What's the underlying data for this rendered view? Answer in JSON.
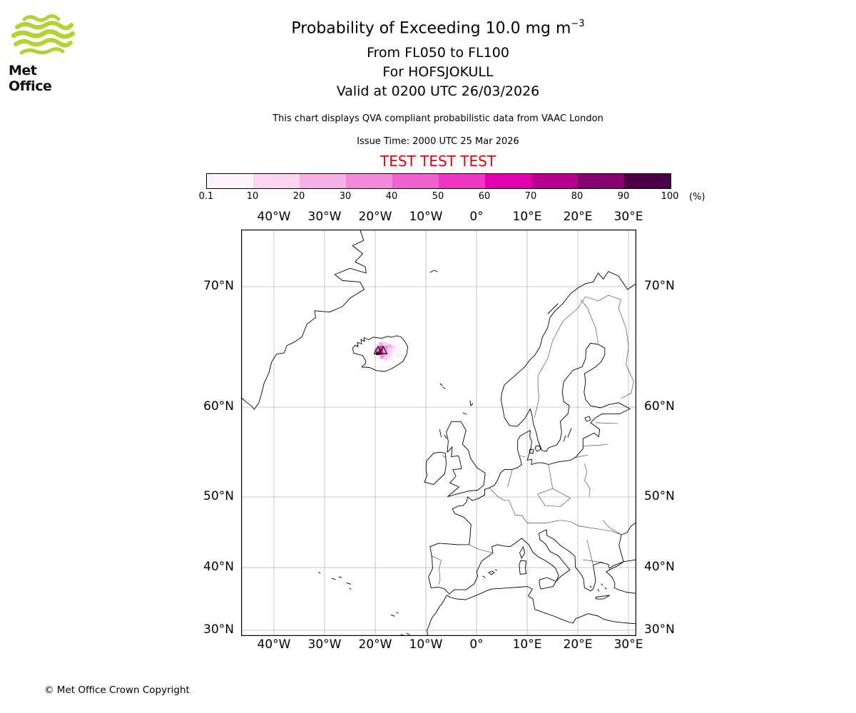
{
  "logo": {
    "brand": "Met Office",
    "wave_color": "#b3d234"
  },
  "header": {
    "title": "Probability of Exceeding 10.0 mg m",
    "title_sup": "−3",
    "line2": "From FL050 to FL100",
    "line3": "For HOFSJOKULL",
    "line4": "Valid at 0200 UTC 26/03/2026",
    "note": "This chart displays QVA compliant probabilistic data from VAAC London",
    "issue": "Issue Time: 2000 UTC 25 Mar 2026",
    "test_banner": "TEST TEST TEST",
    "test_color": "#e8000d"
  },
  "colorbar": {
    "unit": "(%)",
    "ticks": [
      "0.1",
      "10",
      "20",
      "30",
      "40",
      "50",
      "60",
      "70",
      "80",
      "90",
      "100"
    ],
    "colors": [
      "#fdf4fb",
      "#fad4f0",
      "#f7b0e5",
      "#f48ad9",
      "#f161cd",
      "#ee35c1",
      "#e300ae",
      "#b80090",
      "#870070",
      "#4b0048"
    ]
  },
  "map": {
    "lon_labels": [
      "40°W",
      "30°W",
      "20°W",
      "10°W",
      "0°",
      "10°E",
      "20°E",
      "30°E"
    ],
    "lat_labels": [
      "70°N",
      "60°N",
      "50°N",
      "40°N",
      "30°N"
    ],
    "ash_cells": [
      [
        205,
        156,
        0
      ],
      [
        193,
        158,
        2
      ],
      [
        199,
        158,
        1
      ],
      [
        211,
        158,
        0
      ],
      [
        187,
        161,
        1
      ],
      [
        205,
        161,
        2
      ],
      [
        217,
        161,
        0
      ],
      [
        193,
        163,
        5
      ],
      [
        199,
        163,
        3
      ],
      [
        211,
        163,
        1
      ],
      [
        187,
        166,
        3
      ],
      [
        207,
        166,
        1
      ],
      [
        219,
        166,
        0
      ],
      [
        225,
        164,
        0
      ],
      [
        193,
        168,
        6
      ],
      [
        201,
        168,
        2
      ],
      [
        213,
        168,
        0
      ],
      [
        189,
        171,
        8
      ],
      [
        195,
        171,
        4
      ],
      [
        205,
        171,
        1
      ],
      [
        217,
        171,
        0
      ],
      [
        199,
        173,
        2
      ],
      [
        211,
        173,
        0
      ],
      [
        195,
        176,
        3
      ],
      [
        203,
        176,
        1
      ],
      [
        215,
        176,
        0
      ],
      [
        221,
        174,
        0
      ],
      [
        199,
        179,
        1
      ],
      [
        207,
        179,
        0
      ]
    ],
    "volcano_markers": [
      [
        192,
        174
      ],
      [
        199,
        174
      ]
    ]
  },
  "footer": {
    "copyright": "© Met Office Crown Copyright"
  }
}
